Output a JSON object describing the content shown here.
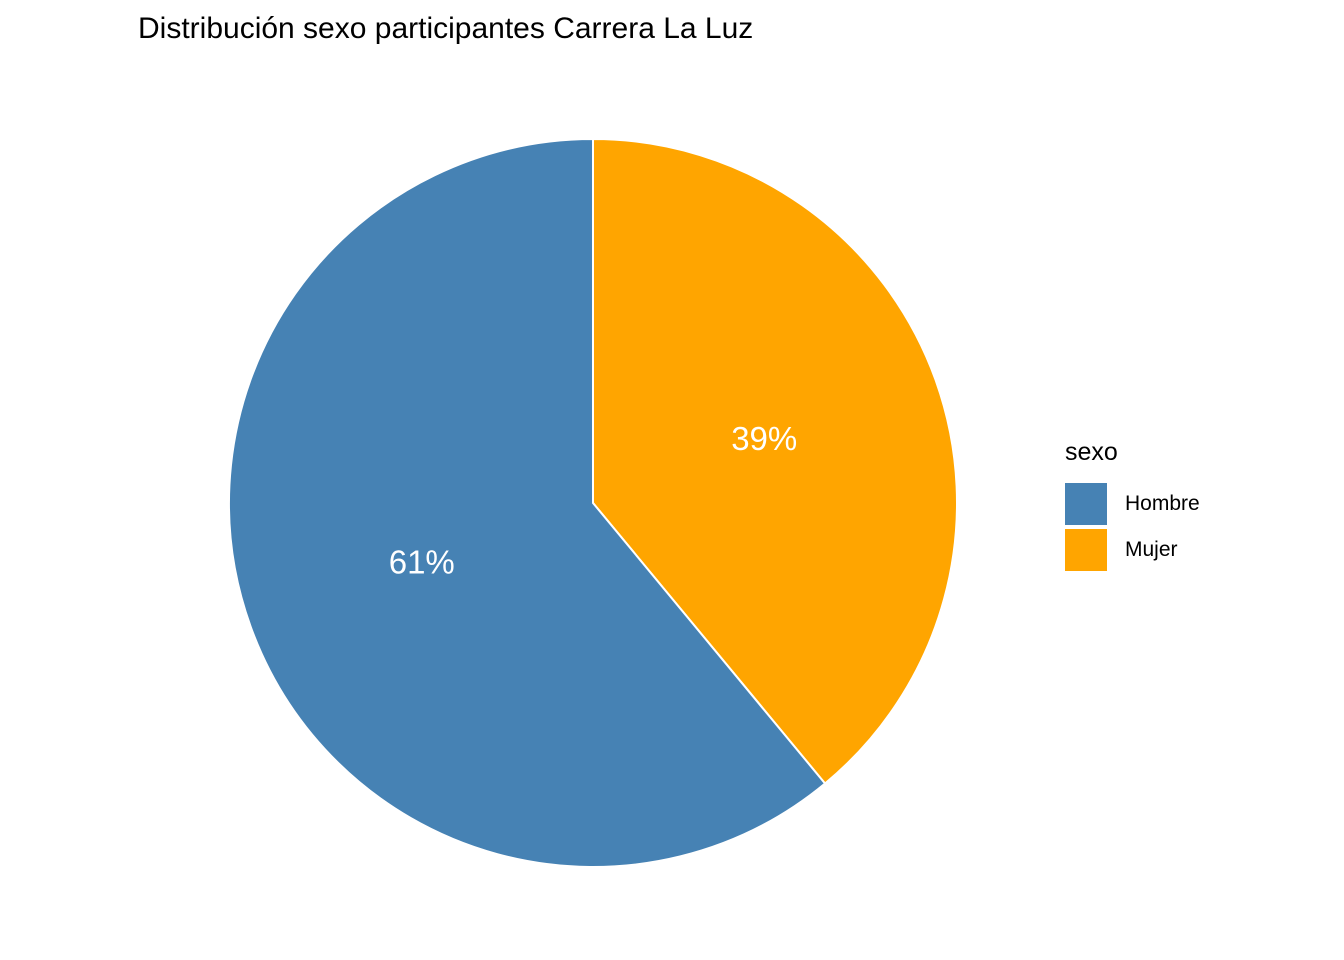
{
  "chart_data": {
    "type": "pie",
    "title": "Distribución sexo participantes Carrera La Luz",
    "legend_title": "sexo",
    "legend_position": "right",
    "slices": [
      {
        "label": "Hombre",
        "value": 61,
        "display": "61%",
        "color": "#4682B4"
      },
      {
        "label": "Mujer",
        "value": 39,
        "display": "39%",
        "color": "#FFA500"
      }
    ]
  }
}
